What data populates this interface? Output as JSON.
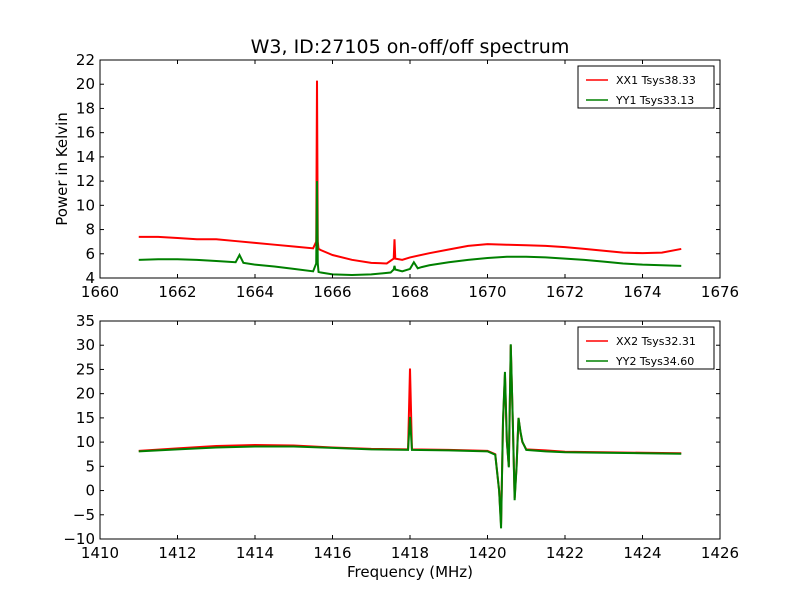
{
  "figure": {
    "title": "W3, ID:27105 on-off/off spectrum"
  },
  "colors": {
    "xx": "#ff0000",
    "yy": "#008000",
    "axes": "#000000",
    "background": "#ffffff"
  },
  "chart_data": [
    {
      "type": "line",
      "title": "W3, ID:27105 on-off/off spectrum",
      "xlabel": "",
      "ylabel": "Power in Kelvin",
      "xlim": [
        1660,
        1676
      ],
      "ylim": [
        4,
        22
      ],
      "xticks": [
        "1660",
        "1662",
        "1664",
        "1666",
        "1668",
        "1670",
        "1672",
        "1674",
        "1676"
      ],
      "yticks": [
        "4",
        "6",
        "8",
        "10",
        "12",
        "14",
        "16",
        "18",
        "20",
        "22"
      ],
      "grid": false,
      "legend": "top-right",
      "series": [
        {
          "name": "XX1 Tsys38.33",
          "color": "#ff0000",
          "x": [
            1661.0,
            1661.5,
            1662.0,
            1662.5,
            1663.0,
            1663.5,
            1664.0,
            1664.5,
            1665.0,
            1665.5,
            1665.58,
            1665.6,
            1665.62,
            1665.64,
            1665.7,
            1666.0,
            1666.5,
            1667.0,
            1667.4,
            1667.58,
            1667.6,
            1667.62,
            1667.8,
            1668.0,
            1668.5,
            1669.0,
            1669.5,
            1670.0,
            1670.5,
            1671.0,
            1671.5,
            1672.0,
            1672.5,
            1673.0,
            1673.5,
            1674.0,
            1674.5,
            1675.0
          ],
          "y": [
            7.4,
            7.4,
            7.3,
            7.2,
            7.2,
            7.05,
            6.9,
            6.75,
            6.6,
            6.45,
            7.0,
            20.3,
            7.0,
            6.4,
            6.3,
            5.9,
            5.5,
            5.25,
            5.2,
            5.6,
            7.2,
            5.6,
            5.5,
            5.7,
            6.05,
            6.35,
            6.65,
            6.8,
            6.75,
            6.7,
            6.65,
            6.55,
            6.4,
            6.25,
            6.1,
            6.05,
            6.1,
            6.4
          ]
        },
        {
          "name": "YY1 Tsys33.13",
          "color": "#008000",
          "x": [
            1661.0,
            1661.5,
            1662.0,
            1662.5,
            1663.0,
            1663.5,
            1663.6,
            1663.7,
            1664.0,
            1664.5,
            1665.0,
            1665.5,
            1665.58,
            1665.6,
            1665.62,
            1665.64,
            1665.7,
            1666.0,
            1666.5,
            1667.0,
            1667.5,
            1667.58,
            1667.6,
            1667.62,
            1667.8,
            1668.0,
            1668.1,
            1668.2,
            1668.3,
            1668.5,
            1669.0,
            1669.5,
            1670.0,
            1670.5,
            1671.0,
            1671.5,
            1672.0,
            1672.5,
            1673.0,
            1673.5,
            1674.0,
            1674.5,
            1675.0
          ],
          "y": [
            5.5,
            5.55,
            5.55,
            5.5,
            5.4,
            5.3,
            5.9,
            5.25,
            5.1,
            4.95,
            4.75,
            4.55,
            5.2,
            12.0,
            5.2,
            4.5,
            4.45,
            4.3,
            4.25,
            4.3,
            4.45,
            4.7,
            5.0,
            4.7,
            4.55,
            4.75,
            5.3,
            4.8,
            4.9,
            5.05,
            5.3,
            5.5,
            5.65,
            5.75,
            5.75,
            5.7,
            5.6,
            5.5,
            5.35,
            5.2,
            5.1,
            5.05,
            5.0
          ]
        }
      ]
    },
    {
      "type": "line",
      "title": "",
      "xlabel": "Frequency (MHz)",
      "ylabel": "",
      "xlim": [
        1410,
        1426
      ],
      "ylim": [
        -10,
        35
      ],
      "xticks": [
        "1410",
        "1412",
        "1414",
        "1416",
        "1418",
        "1420",
        "1422",
        "1424",
        "1426"
      ],
      "yticks": [
        "−10",
        "−5",
        "0",
        "5",
        "10",
        "15",
        "20",
        "25",
        "30",
        "35"
      ],
      "grid": false,
      "legend": "top-right",
      "series": [
        {
          "name": "XX2 Tsys32.31",
          "color": "#ff0000",
          "x": [
            1411.0,
            1412.0,
            1413.0,
            1414.0,
            1415.0,
            1416.0,
            1417.0,
            1417.95,
            1418.0,
            1418.05,
            1419.0,
            1420.0,
            1420.2,
            1420.3,
            1420.35,
            1420.4,
            1420.45,
            1420.5,
            1420.55,
            1420.6,
            1420.65,
            1420.7,
            1420.75,
            1420.8,
            1420.85,
            1420.9,
            1421.0,
            1421.5,
            1422.0,
            1423.0,
            1424.0,
            1425.0
          ],
          "y": [
            8.2,
            8.7,
            9.2,
            9.4,
            9.3,
            8.9,
            8.6,
            8.5,
            25.2,
            8.5,
            8.4,
            8.2,
            7.5,
            0.0,
            -7.0,
            14.0,
            24.0,
            10.0,
            5.0,
            30.0,
            15.0,
            -1.5,
            5.0,
            15.0,
            12.0,
            10.0,
            8.5,
            8.3,
            8.0,
            7.9,
            7.8,
            7.7
          ]
        },
        {
          "name": "YY2 Tsys34.60",
          "color": "#008000",
          "x": [
            1411.0,
            1412.0,
            1413.0,
            1414.0,
            1415.0,
            1416.0,
            1417.0,
            1417.95,
            1418.0,
            1418.05,
            1419.0,
            1420.0,
            1420.2,
            1420.3,
            1420.35,
            1420.4,
            1420.45,
            1420.5,
            1420.55,
            1420.6,
            1420.65,
            1420.7,
            1420.75,
            1420.8,
            1420.85,
            1420.9,
            1421.0,
            1421.5,
            1422.0,
            1423.0,
            1424.0,
            1425.0
          ],
          "y": [
            8.1,
            8.5,
            8.9,
            9.1,
            9.1,
            8.8,
            8.5,
            8.4,
            15.2,
            8.4,
            8.3,
            8.1,
            7.4,
            0.0,
            -7.8,
            14.5,
            24.5,
            10.2,
            4.8,
            30.2,
            15.2,
            -2.0,
            4.8,
            15.0,
            12.2,
            10.1,
            8.4,
            8.1,
            7.9,
            7.8,
            7.7,
            7.6
          ]
        }
      ]
    }
  ]
}
